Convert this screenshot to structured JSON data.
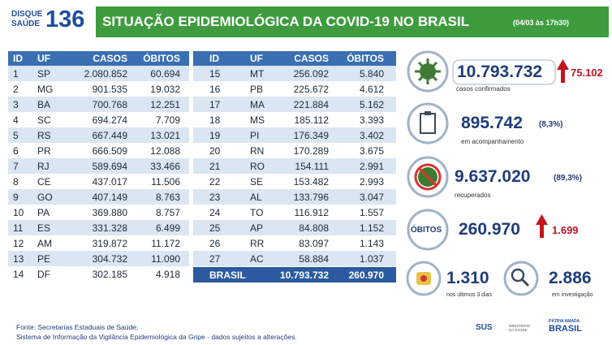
{
  "header": {
    "logo_top": "DISQUE",
    "logo_bottom": "SAÚDE",
    "logo_number": "136",
    "title": "SITUAÇÃO EPIDEMIOLÓGICA DA COVID-19 NO BRASIL",
    "date": "(04/03 às 17h30)"
  },
  "table": {
    "columns": [
      "ID",
      "UF",
      "CASOS",
      "ÓBITOS"
    ],
    "left_rows": [
      [
        "1",
        "SP",
        "2.080.852",
        "60.694"
      ],
      [
        "2",
        "MG",
        "901.535",
        "19.032"
      ],
      [
        "3",
        "BA",
        "700.768",
        "12.251"
      ],
      [
        "4",
        "SC",
        "694.274",
        "7.709"
      ],
      [
        "5",
        "RS",
        "667.449",
        "13.021"
      ],
      [
        "6",
        "PR",
        "666.509",
        "12.088"
      ],
      [
        "7",
        "RJ",
        "589.694",
        "33.466"
      ],
      [
        "8",
        "CE",
        "437.017",
        "11.506"
      ],
      [
        "9",
        "GO",
        "407.149",
        "8.763"
      ],
      [
        "10",
        "PA",
        "369.880",
        "8.757"
      ],
      [
        "11",
        "ES",
        "331.328",
        "6.499"
      ],
      [
        "12",
        "AM",
        "319.872",
        "11.172"
      ],
      [
        "13",
        "PE",
        "304.732",
        "11.090"
      ],
      [
        "14",
        "DF",
        "302.185",
        "4.918"
      ]
    ],
    "right_rows": [
      [
        "15",
        "MT",
        "256.092",
        "5.840"
      ],
      [
        "16",
        "PB",
        "225.672",
        "4.612"
      ],
      [
        "17",
        "MA",
        "221.884",
        "5.162"
      ],
      [
        "18",
        "MS",
        "185.112",
        "3.393"
      ],
      [
        "19",
        "PI",
        "176.349",
        "3.402"
      ],
      [
        "20",
        "RN",
        "170.289",
        "3.675"
      ],
      [
        "21",
        "RO",
        "154.111",
        "2.991"
      ],
      [
        "22",
        "SE",
        "153.482",
        "2.993"
      ],
      [
        "23",
        "AL",
        "133.796",
        "3.047"
      ],
      [
        "24",
        "TO",
        "116.912",
        "1.557"
      ],
      [
        "25",
        "AP",
        "84.808",
        "1.152"
      ],
      [
        "26",
        "RR",
        "83.097",
        "1.143"
      ],
      [
        "27",
        "AC",
        "58.884",
        "1.037"
      ]
    ],
    "total": [
      "BRASIL",
      "10.793.732",
      "260.970"
    ]
  },
  "stats": {
    "confirmed": {
      "value": "10.793.732",
      "increase": "75.102",
      "label": "casos confirmados"
    },
    "monitoring": {
      "value": "895.742",
      "percent": "(8,3%)",
      "label": "em acompanhamento"
    },
    "recovered": {
      "value": "9.637.020",
      "percent": "(89,3%)",
      "label": "recuperados"
    },
    "deaths": {
      "label": "ÓBITOS",
      "value": "260.970",
      "increase": "1.699"
    },
    "recent": {
      "value": "1.310",
      "label": "nos últimos 3 dias"
    },
    "investigation": {
      "value": "2.886",
      "label": "em investigação"
    }
  },
  "footer": {
    "source": "Fonte: Secretarias Estaduais de Saúde;",
    "note": "Sistema de Informação da Vigilância Epidemiológica da Gripe - dados sujeitos a alterações.",
    "sus": "SUS",
    "ministry": "MINISTÉRIO DA SAÚDE",
    "slogan": "PÁTRIA AMADA",
    "country": "BRASIL"
  }
}
